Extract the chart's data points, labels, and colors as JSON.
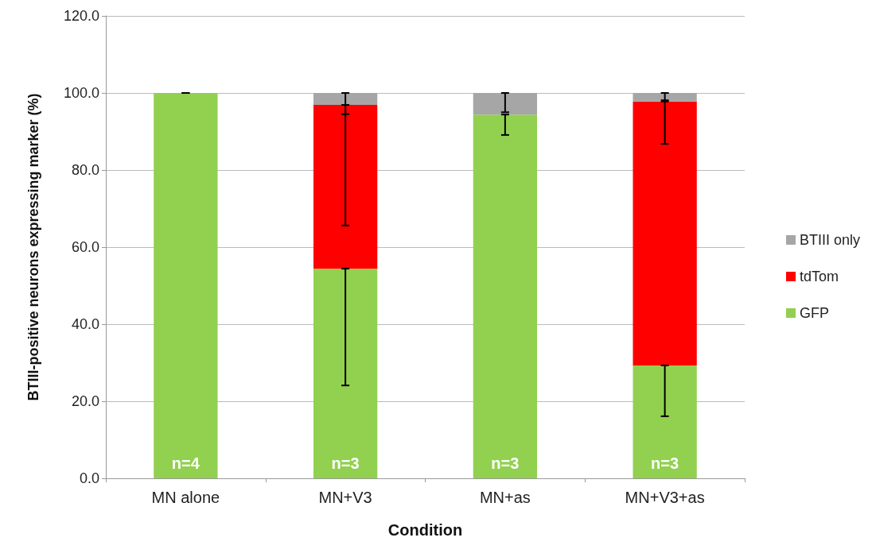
{
  "chart_data": {
    "type": "bar",
    "stacked": true,
    "xlabel": "Condition",
    "ylabel": "BTIII-positive neurons expressing marker (%)",
    "categories": [
      "MN alone",
      "MN+V3",
      "MN+as",
      "MN+V3+as"
    ],
    "series": [
      {
        "name": "GFP",
        "color": "#92d050",
        "values": [
          100,
          54.4,
          94.4,
          29.3
        ],
        "errors": [
          [
            100,
            100
          ],
          [
            24.1,
            54.4
          ],
          [
            89.1,
            94.4
          ],
          [
            16.1,
            29.3
          ]
        ]
      },
      {
        "name": "tdTom",
        "color": "#ff0000",
        "values": [
          0,
          42.5,
          0,
          68.5
        ],
        "errors": [
          null,
          [
            65.6,
            96.9
          ],
          null,
          [
            86.8,
            97.8
          ]
        ]
      },
      {
        "name": "BTIII only",
        "color": "#a6a6a6",
        "values": [
          0,
          3.1,
          5.6,
          2.2
        ],
        "errors": [
          null,
          [
            94.5,
            100
          ],
          [
            95.0,
            100
          ],
          [
            98.1,
            100
          ]
        ]
      }
    ],
    "ylim": [
      0,
      120
    ],
    "yticks": [
      {
        "value": 0,
        "label": "0.0"
      },
      {
        "value": 20,
        "label": "20.0"
      },
      {
        "value": 40,
        "label": "40.0"
      },
      {
        "value": 60,
        "label": "60.0"
      },
      {
        "value": 80,
        "label": "80.0"
      },
      {
        "value": 100,
        "label": "100.0"
      },
      {
        "value": 120,
        "label": "120.0"
      }
    ],
    "grid": "y",
    "legend": "right",
    "annotations": [
      "n=4",
      "n=3",
      "n=3",
      "n=3"
    ]
  }
}
